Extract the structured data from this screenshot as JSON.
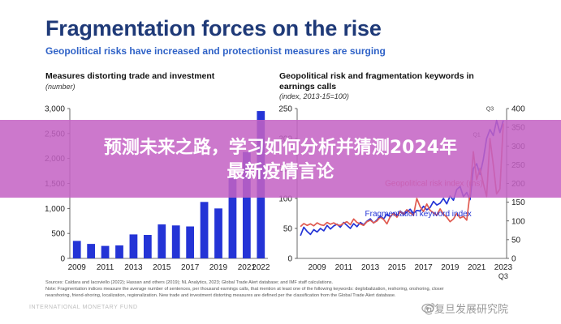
{
  "figure": {
    "title": "Fragmentation forces on the rise",
    "subtitle": "Geopolitical risks have increased and protectionist measures are surging"
  },
  "chart_data": [
    {
      "type": "bar",
      "title": "Measures distorting trade and investment",
      "unit": "(number)",
      "categories": [
        "2009",
        "2010",
        "2011",
        "2012",
        "2013",
        "2014",
        "2015",
        "2016",
        "2017",
        "2018",
        "2019",
        "2020",
        "2021",
        "2022"
      ],
      "x_tick_labels": [
        "2009",
        "2011",
        "2013",
        "2015",
        "2017",
        "2019",
        "2021",
        "2022"
      ],
      "values": [
        350,
        290,
        250,
        260,
        480,
        470,
        680,
        660,
        640,
        1130,
        1000,
        1650,
        2130,
        2950
      ],
      "ylim": [
        0,
        3000
      ],
      "y_ticks": [
        "0",
        "500",
        "1,000",
        "1,500",
        "2,000",
        "2,500",
        "3,000"
      ],
      "color": "#2434d6",
      "grid": false
    },
    {
      "type": "line",
      "title": "Geopolitical risk and fragmentation keywords in earnings calls",
      "unit": "(index, 2013-15=100)",
      "x_tick_labels": [
        "2009",
        "2011",
        "2013",
        "2015",
        "2017",
        "2019",
        "2021",
        "2023"
      ],
      "x_tick_sublabel": "Q3",
      "ylim_left": [
        0,
        250
      ],
      "ylim_right": [
        0,
        400
      ],
      "y_ticks_left": [
        "0",
        "50",
        "100",
        "150",
        "200",
        "250"
      ],
      "y_ticks_right": [
        "0",
        "50",
        "100",
        "150",
        "200",
        "250",
        "300",
        "350",
        "400"
      ],
      "annotations": [
        "Q3",
        "Q1"
      ],
      "series": [
        {
          "name": "Fragmentation keyword index",
          "axis": "left",
          "color": "#2434d6",
          "x": [
            2008.25,
            2008.5,
            2008.75,
            2009,
            2009.25,
            2009.5,
            2009.75,
            2010,
            2010.25,
            2010.5,
            2010.75,
            2011,
            2011.25,
            2011.5,
            2011.75,
            2012,
            2012.25,
            2012.5,
            2012.75,
            2013,
            2013.25,
            2013.5,
            2013.75,
            2014,
            2014.25,
            2014.5,
            2014.75,
            2015,
            2015.25,
            2015.5,
            2015.75,
            2016,
            2016.25,
            2016.5,
            2016.75,
            2017,
            2017.25,
            2017.5,
            2017.75,
            2018,
            2018.25,
            2018.5,
            2018.75,
            2019,
            2019.25,
            2019.5,
            2019.75,
            2020,
            2020.25,
            2020.5,
            2020.75,
            2021,
            2021.25,
            2021.5,
            2021.75,
            2022,
            2022.25,
            2022.5,
            2022.75,
            2023,
            2023.25,
            2023.5
          ],
          "values": [
            38,
            52,
            45,
            40,
            48,
            44,
            50,
            46,
            55,
            49,
            54,
            57,
            52,
            60,
            55,
            50,
            58,
            53,
            60,
            56,
            62,
            66,
            59,
            64,
            71,
            66,
            74,
            69,
            76,
            71,
            79,
            73,
            77,
            82,
            75,
            80,
            79,
            87,
            81,
            85,
            95,
            89,
            92,
            100,
            91,
            104,
            97,
            115,
            120,
            103,
            110,
            98,
            150,
            158,
            140,
            165,
            200,
            215,
            205,
            230,
            210,
            230
          ]
        },
        {
          "name": "Geopolitical risk index (rhs)",
          "axis": "right",
          "color": "#e05a50",
          "x": [
            2008.25,
            2008.5,
            2008.75,
            2009,
            2009.25,
            2009.5,
            2009.75,
            2010,
            2010.25,
            2010.5,
            2010.75,
            2011,
            2011.25,
            2011.5,
            2011.75,
            2012,
            2012.25,
            2012.5,
            2012.75,
            2013,
            2013.25,
            2013.5,
            2013.75,
            2014,
            2014.25,
            2014.5,
            2014.75,
            2015,
            2015.25,
            2015.5,
            2015.75,
            2016,
            2016.25,
            2016.5,
            2016.75,
            2017,
            2017.25,
            2017.5,
            2017.75,
            2018,
            2018.25,
            2018.5,
            2018.75,
            2019,
            2019.25,
            2019.5,
            2019.75,
            2020,
            2020.25,
            2020.5,
            2020.75,
            2021,
            2021.25,
            2021.5,
            2021.75,
            2022,
            2022.25,
            2022.5,
            2022.75,
            2023,
            2023.25,
            2023.5
          ],
          "values": [
            85,
            93,
            88,
            92,
            87,
            95,
            90,
            88,
            96,
            91,
            95,
            90,
            88,
            94,
            98,
            90,
            105,
            96,
            92,
            88,
            98,
            102,
            95,
            100,
            110,
            104,
            92,
            112,
            120,
            110,
            125,
            118,
            130,
            122,
            115,
            160,
            138,
            125,
            145,
            128,
            122,
            115,
            132,
            118,
            110,
            98,
            105,
            120,
            108,
            112,
            102,
            175,
            285,
            210,
            240,
            200,
            165,
            320,
            250,
            172,
            185,
            360
          ]
        }
      ],
      "grid": false
    }
  ],
  "notes": {
    "sources": "Sources: Caldara and Iacoviello (2022); Hassan and others (2019); NL Analytics, 2023; Global Trade Alert database; and IMF staff calculations.",
    "note_1": "Note: Fragmentation indices measure the average number of sentences, per thousand earnings calls, that mention at least one of the following keywords: deglobalization, reshoring, onshoring, closer",
    "note_2": "nearshoring, friend-shoring, localization, regionalization. New trade and investment distorting measures are defined per the classification from the Global Trade Alert database.",
    "org": "INTERNATIONAL MONETARY FUND"
  },
  "banner": {
    "line1": "预测未来之路，学习如何分析并猜测2024年",
    "line2": "最新疫情言论"
  },
  "watermark": "@复旦发展研究院"
}
